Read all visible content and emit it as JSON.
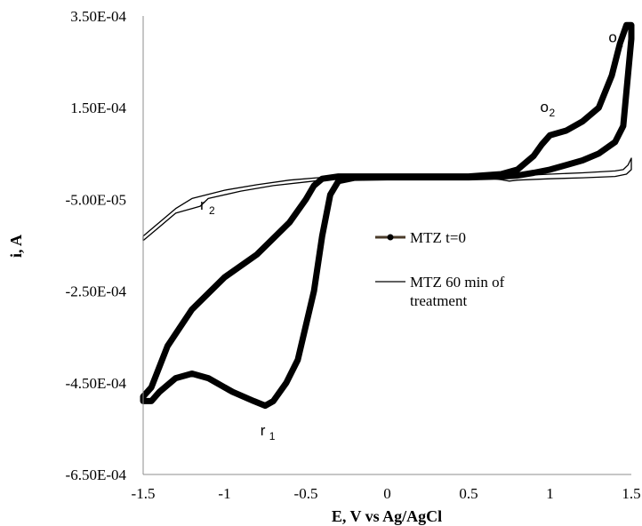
{
  "chart_data": {
    "type": "line",
    "title": "",
    "xlabel": "E, V vs  Ag/AgCl",
    "ylabel": "i, A",
    "xlim": [
      -1.5,
      1.5
    ],
    "ylim": [
      -0.00065,
      0.00035
    ],
    "x_ticks": [
      {
        "value": -1.5,
        "label": "-1.5"
      },
      {
        "value": -1,
        "label": "-1"
      },
      {
        "value": -0.5,
        "label": "-0.5"
      },
      {
        "value": 0,
        "label": "0"
      },
      {
        "value": 0.5,
        "label": "0.5"
      },
      {
        "value": 1,
        "label": "1"
      },
      {
        "value": 1.5,
        "label": "1.5"
      }
    ],
    "y_ticks": [
      {
        "value": 0.00035,
        "label": "3.50E-04"
      },
      {
        "value": 0.00015,
        "label": "1.50E-04"
      },
      {
        "value": -5e-05,
        "label": "-5.00E-05"
      },
      {
        "value": -0.00025,
        "label": "-2.50E-04"
      },
      {
        "value": -0.00045,
        "label": "-4.50E-04"
      },
      {
        "value": -0.00065,
        "label": "-6.50E-04"
      }
    ],
    "grid": false,
    "legend_position": "right",
    "series": [
      {
        "name": "MTZ t=0",
        "color": "#000000",
        "style": "thick",
        "points": [
          [
            -0.2,
            0.0
          ],
          [
            0.5,
            0.0
          ],
          [
            0.7,
            5e-06
          ],
          [
            0.8,
            1.5e-05
          ],
          [
            0.9,
            4.5e-05
          ],
          [
            0.95,
            7e-05
          ],
          [
            1.0,
            9e-05
          ],
          [
            1.05,
            9.5e-05
          ],
          [
            1.1,
            0.0001
          ],
          [
            1.2,
            0.00012
          ],
          [
            1.3,
            0.00015
          ],
          [
            1.38,
            0.00022
          ],
          [
            1.43,
            0.00029
          ],
          [
            1.47,
            0.00033
          ],
          [
            1.5,
            0.00033
          ],
          [
            1.5,
            0.0003
          ],
          [
            1.45,
            0.00011
          ],
          [
            1.4,
            7.5e-05
          ],
          [
            1.3,
            5e-05
          ],
          [
            1.2,
            3.5e-05
          ],
          [
            1.1,
            2.5e-05
          ],
          [
            1.0,
            1.5e-05
          ],
          [
            0.9,
            8e-06
          ],
          [
            0.8,
            2e-06
          ],
          [
            0.7,
            0.0
          ],
          [
            0.5,
            -2e-06
          ],
          [
            0.0,
            -2e-06
          ],
          [
            -0.2,
            -3e-06
          ],
          [
            -0.3,
            -1e-05
          ],
          [
            -0.35,
            -4e-05
          ],
          [
            -0.4,
            -0.00013
          ],
          [
            -0.45,
            -0.00025
          ],
          [
            -0.55,
            -0.0004
          ],
          [
            -0.62,
            -0.00045
          ],
          [
            -0.7,
            -0.00049
          ],
          [
            -0.75,
            -0.0005
          ],
          [
            -0.82,
            -0.00049
          ],
          [
            -0.95,
            -0.00047
          ],
          [
            -1.1,
            -0.00044
          ],
          [
            -1.2,
            -0.00043
          ],
          [
            -1.3,
            -0.00044
          ],
          [
            -1.4,
            -0.00047
          ],
          [
            -1.45,
            -0.00049
          ],
          [
            -1.5,
            -0.00049
          ],
          [
            -1.5,
            -0.00048
          ],
          [
            -1.45,
            -0.00046
          ],
          [
            -1.35,
            -0.00037
          ],
          [
            -1.2,
            -0.00029
          ],
          [
            -1.0,
            -0.00022
          ],
          [
            -0.8,
            -0.00017
          ],
          [
            -0.7,
            -0.000135
          ],
          [
            -0.6,
            -0.0001
          ],
          [
            -0.5,
            -5e-05
          ],
          [
            -0.45,
            -2e-05
          ],
          [
            -0.4,
            -5e-06
          ],
          [
            -0.3,
            0.0
          ],
          [
            -0.2,
            0.0
          ]
        ]
      },
      {
        "name": "MTZ 60 min of treatment",
        "color": "#000000",
        "style": "thin",
        "points": [
          [
            -0.3,
            0.0
          ],
          [
            0.7,
            0.0
          ],
          [
            1.0,
            5e-06
          ],
          [
            1.2,
            8e-06
          ],
          [
            1.4,
            1.2e-05
          ],
          [
            1.45,
            1.5e-05
          ],
          [
            1.48,
            2.5e-05
          ],
          [
            1.5,
            4e-05
          ],
          [
            1.5,
            1.5e-05
          ],
          [
            1.47,
            5e-06
          ],
          [
            1.4,
            0.0
          ],
          [
            1.2,
            -3e-06
          ],
          [
            1.0,
            -5e-06
          ],
          [
            0.8,
            -8e-06
          ],
          [
            0.75,
            -1e-05
          ],
          [
            0.7,
            -7e-06
          ],
          [
            0.6,
            -3e-06
          ],
          [
            0.0,
            -3e-06
          ],
          [
            -0.3,
            -3e-06
          ],
          [
            -0.35,
            -6e-06
          ],
          [
            -0.5,
            -1.2e-05
          ],
          [
            -0.7,
            -2e-05
          ],
          [
            -0.9,
            -3.2e-05
          ],
          [
            -1.1,
            -4.8e-05
          ],
          [
            -1.15,
            -6.5e-05
          ],
          [
            -1.2,
            -7e-05
          ],
          [
            -1.25,
            -7.5e-05
          ],
          [
            -1.3,
            -8e-05
          ],
          [
            -1.4,
            -0.00011
          ],
          [
            -1.5,
            -0.00014
          ],
          [
            -1.5,
            -0.00013
          ],
          [
            -1.4,
            -0.0001
          ],
          [
            -1.3,
            -7e-05
          ],
          [
            -1.2,
            -4.8e-05
          ],
          [
            -1.0,
            -3e-05
          ],
          [
            -0.8,
            -1.8e-05
          ],
          [
            -0.6,
            -8e-06
          ],
          [
            -0.4,
            -2e-06
          ],
          [
            -0.3,
            0.0
          ]
        ]
      }
    ],
    "annotations": [
      {
        "label": "o",
        "sub": "1",
        "x": 1.36,
        "y": 0.000293
      },
      {
        "label": "o",
        "sub": "2",
        "x": 0.94,
        "y": 0.000141
      },
      {
        "label": "r",
        "sub": "2",
        "x": -1.15,
        "y": -7.2e-05
      },
      {
        "label": "r",
        "sub": "1",
        "x": -0.78,
        "y": -0.000565
      }
    ]
  }
}
